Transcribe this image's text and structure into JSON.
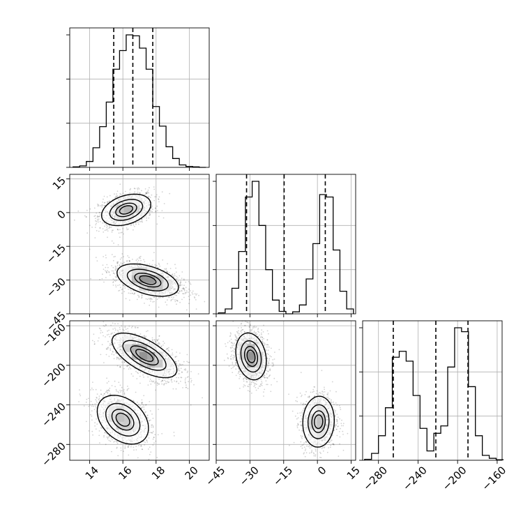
{
  "chart_data": {
    "type": "corner",
    "title": "",
    "grid": true,
    "parameters": [
      {
        "name": "",
        "range": [
          12.8,
          21.2
        ],
        "tick_labels": [
          "14",
          "16",
          "18",
          "20"
        ],
        "tick_values": [
          14,
          16,
          18,
          20
        ],
        "quantiles": [
          15.45,
          16.6,
          17.8
        ],
        "histogram": {
          "bin_edges": [
            13.0,
            13.4,
            13.8,
            14.2,
            14.6,
            15.0,
            15.4,
            15.8,
            16.2,
            16.6,
            17.0,
            17.4,
            17.8,
            18.2,
            18.6,
            19.0,
            19.4,
            19.8,
            20.2,
            20.6,
            21.0
          ],
          "counts": [
            1,
            3,
            12,
            40,
            83,
            133,
            200,
            238,
            270,
            268,
            243,
            200,
            124,
            84,
            42,
            18,
            5,
            2,
            1,
            0
          ]
        }
      },
      {
        "name": "",
        "range": [
          -45,
          17
        ],
        "tick_labels": [
          "−45",
          "−30",
          "−15",
          "0",
          "15"
        ],
        "tick_values": [
          -45,
          -30,
          -15,
          0,
          15
        ],
        "quantiles": [
          -31.5,
          -14.8,
          3.5
        ],
        "histogram": {
          "bin_edges": [
            -44,
            -41,
            -38,
            -35,
            -32,
            -29,
            -26,
            -23,
            -20,
            -17,
            -14,
            -11,
            -8,
            -5,
            -2,
            1,
            4,
            7,
            10,
            13,
            16
          ],
          "counts": [
            2,
            10,
            52,
            127,
            238,
            270,
            180,
            90,
            28,
            5,
            0,
            4,
            18,
            71,
            143,
            243,
            238,
            130,
            46,
            10
          ]
        }
      },
      {
        "name": "",
        "range": [
          -296,
          -155
        ],
        "tick_labels": [
          "−280",
          "−240",
          "−200",
          "−160"
        ],
        "tick_values": [
          -280,
          -240,
          -200,
          -160
        ],
        "quantiles": [
          -265,
          -222,
          -189.5
        ],
        "histogram": {
          "bin_edges": [
            -294,
            -287,
            -280,
            -273,
            -266,
            -259,
            -252,
            -245,
            -238,
            -231,
            -224,
            -217,
            -210,
            -203,
            -196,
            -189,
            -182,
            -175,
            -168,
            -161,
            -154
          ],
          "counts": [
            2,
            14,
            50,
            107,
            210,
            222,
            202,
            132,
            65,
            19,
            55,
            70,
            190,
            270,
            262,
            150,
            50,
            10,
            4,
            1
          ]
        }
      }
    ],
    "pairs": [
      {
        "x": 0,
        "y": 1,
        "modes": [
          {
            "cx": 16.2,
            "cy": 1.2,
            "sx": 0.72,
            "sy": 3.4,
            "rho": 0.35,
            "weight": 1.0
          },
          {
            "cx": 17.5,
            "cy": -30.0,
            "sx": 0.9,
            "sy": 3.5,
            "rho": -0.45,
            "weight": 1.35
          }
        ]
      },
      {
        "x": 0,
        "y": 2,
        "modes": [
          {
            "cx": 17.3,
            "cy": -190.0,
            "sx": 0.95,
            "sy": 11.0,
            "rho": -0.65,
            "weight": 1.4
          },
          {
            "cx": 16.0,
            "cy": -255.0,
            "sx": 0.75,
            "sy": 12.0,
            "rho": -0.35,
            "weight": 1.0
          }
        ]
      },
      {
        "x": 1,
        "y": 2,
        "modes": [
          {
            "cx": -29.5,
            "cy": -191.0,
            "sx": 3.3,
            "sy": 11.5,
            "rho": -0.2,
            "weight": 1.35
          },
          {
            "cx": 0.5,
            "cy": -257.0,
            "sx": 3.4,
            "sy": 12.5,
            "rho": 0.05,
            "weight": 1.0
          }
        ]
      }
    ],
    "contour_levels": [
      0.12,
      0.39,
      0.68,
      0.86
    ],
    "colors": {
      "line": "#000000",
      "grid": "#b0b0b0",
      "points": "#000000"
    }
  }
}
